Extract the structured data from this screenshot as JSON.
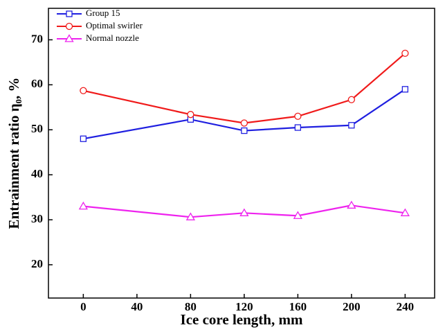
{
  "chart_data": {
    "type": "line",
    "x_label": "Ice core length, mm",
    "y_label": "Entrainment ratio η₀, %",
    "x": [
      0,
      80,
      120,
      160,
      200,
      240
    ],
    "xlim": [
      -26,
      262
    ],
    "xticks": [
      0,
      40,
      80,
      120,
      160,
      200,
      240
    ],
    "ylim": [
      12.6,
      77
    ],
    "yticks": [
      20,
      30,
      40,
      50,
      60,
      70
    ],
    "legend": "upper left",
    "series": [
      {
        "name": "Group 15",
        "color": "#1f1fe0",
        "marker": "square",
        "values": [
          48,
          52.3,
          49.8,
          50.5,
          51,
          59
        ]
      },
      {
        "name": "Optimal swirler",
        "color": "#f01a1a",
        "marker": "circle",
        "values": [
          58.7,
          53.4,
          51.5,
          53,
          56.7,
          67
        ]
      },
      {
        "name": "Normal nozzle",
        "color": "#ee22ee",
        "marker": "triangle",
        "values": [
          33,
          30.6,
          31.5,
          30.9,
          33.2,
          31.5
        ]
      }
    ]
  }
}
